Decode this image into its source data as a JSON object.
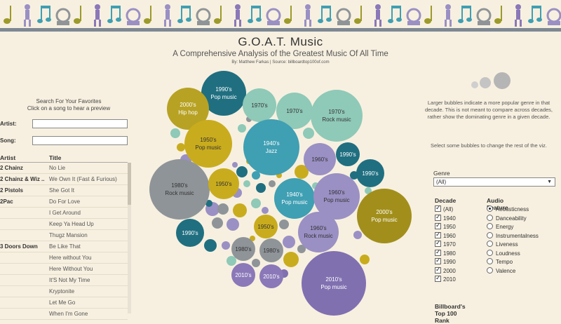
{
  "header": {
    "title": "G.O.A.T. Music",
    "subtitle": "A Comprehensive Analysis of the Greatest Music Of All Time",
    "byline": "By: Matthew Farkas | Source: billboardtop100of.com"
  },
  "search": {
    "heading_line1": "Search For Your Favorites",
    "heading_line2": "Click on a song to hear a preview",
    "artist_label": "Artist:",
    "song_label": "Song:",
    "artist_value": "",
    "song_value": ""
  },
  "table": {
    "col_artist": "Artist",
    "col_title": "Title",
    "rows": [
      {
        "artist": "2 Chainz",
        "title": "No Lie"
      },
      {
        "artist": "2 Chainz & Wiz ..",
        "title": "We Own It (Fast & Furious)"
      },
      {
        "artist": "2 Pistols",
        "title": "She Got It"
      },
      {
        "artist": "2Pac",
        "title": "Do For Love"
      },
      {
        "artist": "",
        "title": "I Get Around"
      },
      {
        "artist": "",
        "title": "Keep Ya Head Up"
      },
      {
        "artist": "",
        "title": "Thugz Mansion"
      },
      {
        "artist": "3 Doors Down",
        "title": "Be Like That"
      },
      {
        "artist": "",
        "title": "Here without You"
      },
      {
        "artist": "",
        "title": "Here Without You"
      },
      {
        "artist": "",
        "title": "It'S Not My Time"
      },
      {
        "artist": "",
        "title": "Kryptonite"
      },
      {
        "artist": "",
        "title": "Let Me Go"
      },
      {
        "artist": "",
        "title": "When I'm Gone"
      }
    ]
  },
  "bubbles": [
    {
      "decade": "1990's",
      "genre": "Pop music",
      "color": "#1f6f80"
    },
    {
      "decade": "2000's",
      "genre": "Hip hop",
      "color": "#b7a224"
    },
    {
      "decade": "1970's",
      "genre": "",
      "color": "#8fc9b7"
    },
    {
      "decade": "1970's",
      "genre": "",
      "color": "#8fc9b7"
    },
    {
      "decade": "1970's",
      "genre": "Rock music",
      "color": "#8fc9b7"
    },
    {
      "decade": "1950's",
      "genre": "Pop music",
      "color": "#c9ac1d"
    },
    {
      "decade": "1940's",
      "genre": "Jazz",
      "color": "#3f9fb3"
    },
    {
      "decade": "1990's",
      "genre": "",
      "color": "#1f6f80"
    },
    {
      "decade": "1960's",
      "genre": "",
      "color": "#9a90c4"
    },
    {
      "decade": "1990's",
      "genre": "",
      "color": "#1f6f80"
    },
    {
      "decade": "1980's",
      "genre": "Rock music",
      "color": "#8f9498"
    },
    {
      "decade": "1950's",
      "genre": "",
      "color": "#c9ac1d"
    },
    {
      "decade": "1940's",
      "genre": "Pop music",
      "color": "#3f9fb3"
    },
    {
      "decade": "1960's",
      "genre": "Pop music",
      "color": "#9a90c4"
    },
    {
      "decade": "2000's",
      "genre": "Pop music",
      "color": "#a28f1b"
    },
    {
      "decade": "1990's",
      "genre": "",
      "color": "#1f6f80"
    },
    {
      "decade": "1950's",
      "genre": "",
      "color": "#c9ac1d"
    },
    {
      "decade": "1960's",
      "genre": "Rock music",
      "color": "#9a90c4"
    },
    {
      "decade": "1980's",
      "genre": "",
      "color": "#8f9498"
    },
    {
      "decade": "1980's",
      "genre": "",
      "color": "#8f9498"
    },
    {
      "decade": "2010's",
      "genre": "",
      "color": "#8a78b8"
    },
    {
      "decade": "2010's",
      "genre": "",
      "color": "#8a78b8"
    },
    {
      "decade": "2010's",
      "genre": "Pop music",
      "color": "#8070b0"
    }
  ],
  "legend_note": {
    "size_text": "Larger bubbles indicate a more popular genre in that decade. This is not meant to compare across decades,  rather show the dominating genre in a given decade.",
    "select_text": "Select some bubbles to change the rest of the viz."
  },
  "genre_filter": {
    "label": "Genre",
    "selected": "(All)"
  },
  "decade_filter": {
    "label": "Decade",
    "options": [
      "(All)",
      "1940",
      "1950",
      "1960",
      "1970",
      "1980",
      "1990",
      "2000",
      "2010"
    ]
  },
  "audio_feature": {
    "label": "Audio Feature",
    "options": [
      "Acousticness",
      "Danceability",
      "Energy",
      "Instrumentalness",
      "Liveness",
      "Loudness",
      "Tempo",
      "Valence"
    ],
    "selected": "Acousticness"
  },
  "rank_label": "Billboard's Top 100 Rank",
  "colors": {
    "olive": "#9c9a2a",
    "teal": "#3f9fb3",
    "dark_teal": "#1f6f80",
    "gray": "#8f9498",
    "purple": "#8a78b8",
    "lavender": "#9a90c4",
    "gold": "#c9ac1d",
    "mint": "#8fc9b7"
  }
}
